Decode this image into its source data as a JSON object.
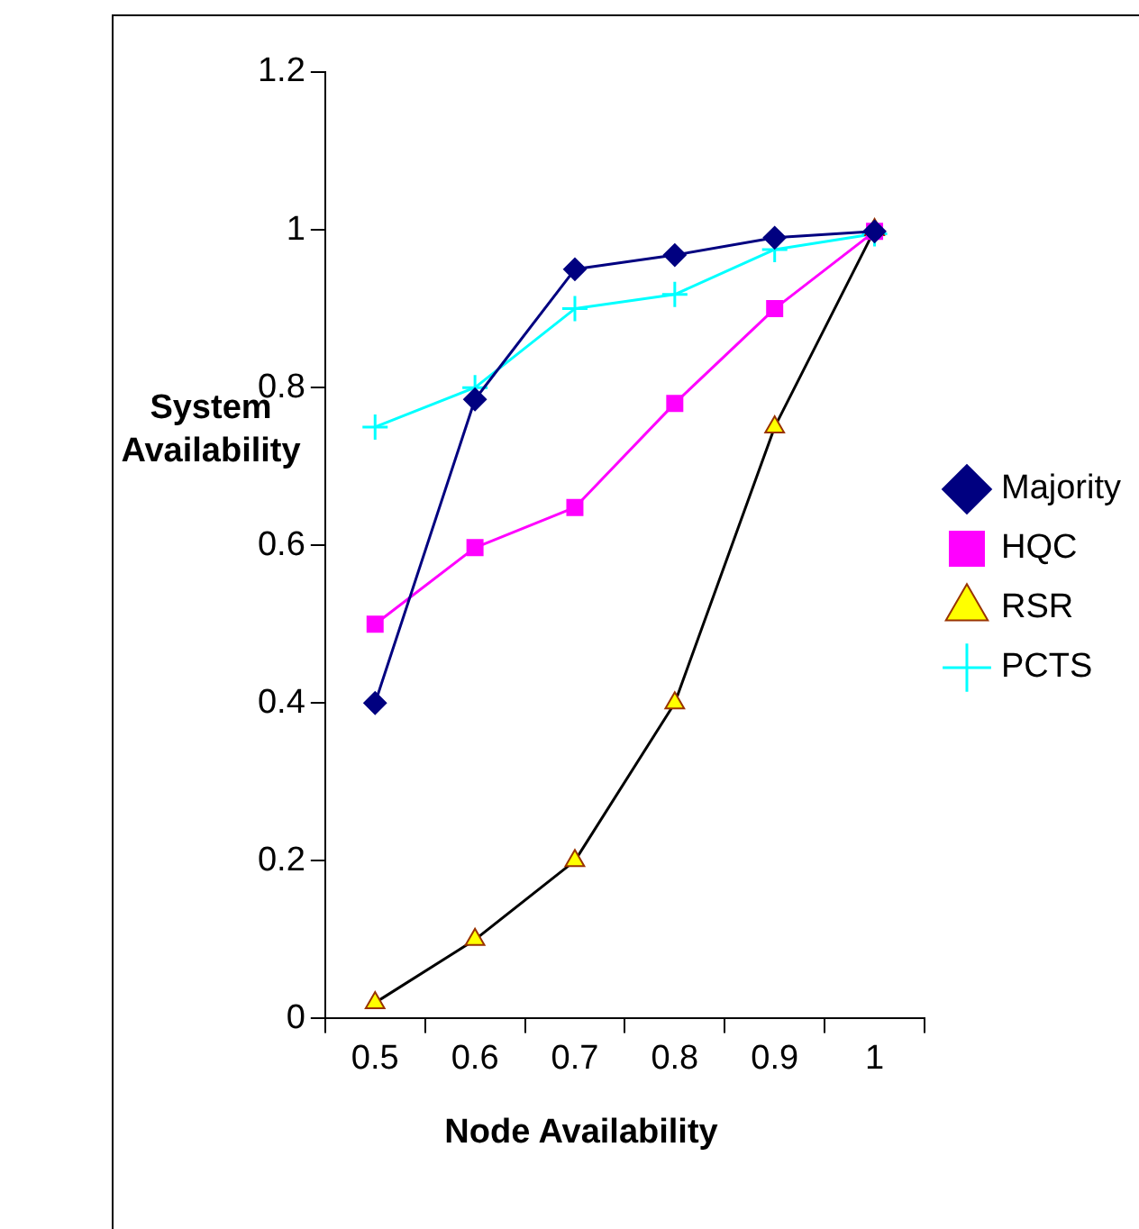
{
  "chart_data": {
    "type": "line",
    "xlabel": "Node Availability",
    "ylabel": "System Availability",
    "categories": [
      "0.5",
      "0.6",
      "0.7",
      "0.8",
      "0.9",
      "1"
    ],
    "series": [
      {
        "name": "Majority",
        "color": "#000080",
        "marker": "diamond",
        "values": [
          0.4,
          0.785,
          0.95,
          0.968,
          0.99,
          0.998
        ]
      },
      {
        "name": "HQC",
        "color": "#ff00ff",
        "marker": "square",
        "values": [
          0.5,
          0.597,
          0.648,
          0.78,
          0.9,
          0.998
        ]
      },
      {
        "name": "RSR",
        "color": "#000000",
        "marker": "triangle",
        "values": [
          0.02,
          0.1,
          0.2,
          0.4,
          0.75,
          1
        ]
      },
      {
        "name": "PCTS",
        "color": "#00ffff",
        "marker": "cross",
        "values": [
          0.75,
          0.8,
          0.9,
          0.918,
          0.975,
          0.995
        ]
      }
    ],
    "ylim": [
      0,
      1.2
    ],
    "yticks": [
      0,
      0.2,
      0.4,
      0.6,
      0.8,
      1,
      1.2
    ],
    "grid": false,
    "legend": "right"
  }
}
